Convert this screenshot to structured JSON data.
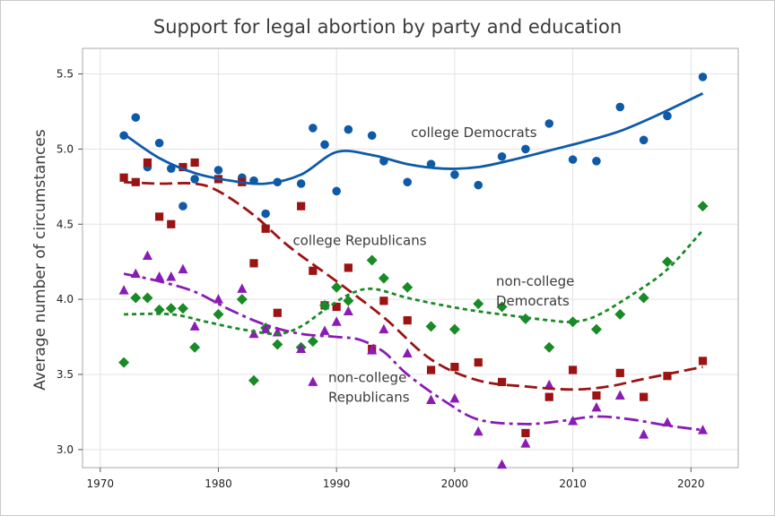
{
  "chart_data": {
    "type": "scatter",
    "title": "Support for legal abortion by party and education",
    "xlabel": "",
    "ylabel": "Average number of circumstances",
    "xlim": [
      1968.5,
      2024
    ],
    "ylim": [
      2.88,
      5.67
    ],
    "xticks": [
      1970,
      1980,
      1990,
      2000,
      2010,
      2020
    ],
    "yticks": [
      3.0,
      3.5,
      4.0,
      4.5,
      5.0,
      5.5
    ],
    "xtick_labels": [
      "1970",
      "1980",
      "1990",
      "2000",
      "2010",
      "2020"
    ],
    "ytick_labels": [
      "3.0",
      "3.5",
      "4.0",
      "4.5",
      "5.0",
      "5.5"
    ],
    "grid": true,
    "legend": "none",
    "series": [
      {
        "name": "college Democrats",
        "color": "#0f5aa8",
        "marker": "circle",
        "line_style": "solid",
        "points": [
          [
            1972,
            5.09
          ],
          [
            1973,
            5.21
          ],
          [
            1974,
            4.88
          ],
          [
            1975,
            5.04
          ],
          [
            1976,
            4.87
          ],
          [
            1977,
            4.62
          ],
          [
            1978,
            4.8
          ],
          [
            1980,
            4.86
          ],
          [
            1982,
            4.81
          ],
          [
            1983,
            4.79
          ],
          [
            1984,
            4.57
          ],
          [
            1985,
            4.78
          ],
          [
            1987,
            4.77
          ],
          [
            1988,
            5.14
          ],
          [
            1989,
            5.03
          ],
          [
            1990,
            4.72
          ],
          [
            1991,
            5.13
          ],
          [
            1993,
            5.09
          ],
          [
            1994,
            4.92
          ],
          [
            1996,
            4.78
          ],
          [
            1998,
            4.9
          ],
          [
            2000,
            4.83
          ],
          [
            2002,
            4.76
          ],
          [
            2004,
            4.95
          ],
          [
            2006,
            5.0
          ],
          [
            2008,
            5.17
          ],
          [
            2010,
            4.93
          ],
          [
            2012,
            4.92
          ],
          [
            2014,
            5.28
          ],
          [
            2016,
            5.06
          ],
          [
            2018,
            5.22
          ],
          [
            2021,
            5.48
          ]
        ],
        "trend": [
          [
            1972,
            5.1
          ],
          [
            1975,
            4.94
          ],
          [
            1978,
            4.84
          ],
          [
            1981,
            4.79
          ],
          [
            1984,
            4.77
          ],
          [
            1987,
            4.83
          ],
          [
            1990,
            4.98
          ],
          [
            1993,
            4.96
          ],
          [
            1996,
            4.9
          ],
          [
            1999,
            4.87
          ],
          [
            2002,
            4.88
          ],
          [
            2005,
            4.93
          ],
          [
            2008,
            4.99
          ],
          [
            2011,
            5.05
          ],
          [
            2014,
            5.12
          ],
          [
            2017,
            5.22
          ],
          [
            2021,
            5.37
          ]
        ]
      },
      {
        "name": "college Republicans",
        "color": "#9b1313",
        "marker": "square",
        "line_style": "dashed",
        "points": [
          [
            1972,
            4.81
          ],
          [
            1973,
            4.78
          ],
          [
            1974,
            4.91
          ],
          [
            1975,
            4.55
          ],
          [
            1976,
            4.5
          ],
          [
            1977,
            4.88
          ],
          [
            1978,
            4.91
          ],
          [
            1980,
            4.8
          ],
          [
            1982,
            4.78
          ],
          [
            1983,
            4.24
          ],
          [
            1984,
            4.47
          ],
          [
            1985,
            3.91
          ],
          [
            1987,
            4.62
          ],
          [
            1988,
            4.19
          ],
          [
            1989,
            3.96
          ],
          [
            1990,
            3.95
          ],
          [
            1991,
            4.21
          ],
          [
            1993,
            3.67
          ],
          [
            1994,
            3.99
          ],
          [
            1996,
            3.86
          ],
          [
            1998,
            3.53
          ],
          [
            2000,
            3.55
          ],
          [
            2002,
            3.58
          ],
          [
            2004,
            3.45
          ],
          [
            2006,
            3.11
          ],
          [
            2008,
            3.35
          ],
          [
            2010,
            3.53
          ],
          [
            2012,
            3.36
          ],
          [
            2014,
            3.51
          ],
          [
            2016,
            3.35
          ],
          [
            2018,
            3.49
          ],
          [
            2021,
            3.59
          ]
        ],
        "trend": [
          [
            1972,
            4.78
          ],
          [
            1975,
            4.77
          ],
          [
            1978,
            4.77
          ],
          [
            1980,
            4.72
          ],
          [
            1983,
            4.56
          ],
          [
            1986,
            4.35
          ],
          [
            1990,
            4.12
          ],
          [
            1994,
            3.88
          ],
          [
            1998,
            3.6
          ],
          [
            2002,
            3.46
          ],
          [
            2006,
            3.42
          ],
          [
            2010,
            3.4
          ],
          [
            2013,
            3.42
          ],
          [
            2016,
            3.47
          ],
          [
            2021,
            3.55
          ]
        ]
      },
      {
        "name": "non-college Democrats",
        "color": "#188a26",
        "marker": "diamond",
        "line_style": "dotted",
        "points": [
          [
            1972,
            3.58
          ],
          [
            1973,
            4.01
          ],
          [
            1974,
            4.01
          ],
          [
            1975,
            3.93
          ],
          [
            1976,
            3.94
          ],
          [
            1977,
            3.94
          ],
          [
            1978,
            3.68
          ],
          [
            1980,
            3.9
          ],
          [
            1982,
            4.0
          ],
          [
            1983,
            3.46
          ],
          [
            1984,
            3.81
          ],
          [
            1985,
            3.7
          ],
          [
            1987,
            3.68
          ],
          [
            1988,
            3.72
          ],
          [
            1989,
            3.96
          ],
          [
            1990,
            4.08
          ],
          [
            1991,
            3.99
          ],
          [
            1993,
            4.26
          ],
          [
            1994,
            4.14
          ],
          [
            1996,
            4.08
          ],
          [
            1998,
            3.82
          ],
          [
            2000,
            3.8
          ],
          [
            2002,
            3.97
          ],
          [
            2004,
            3.95
          ],
          [
            2006,
            3.87
          ],
          [
            2008,
            3.68
          ],
          [
            2010,
            3.85
          ],
          [
            2012,
            3.8
          ],
          [
            2014,
            3.9
          ],
          [
            2016,
            4.01
          ],
          [
            2018,
            4.25
          ],
          [
            2021,
            4.62
          ]
        ],
        "trend": [
          [
            1972,
            3.9
          ],
          [
            1976,
            3.9
          ],
          [
            1979,
            3.85
          ],
          [
            1982,
            3.8
          ],
          [
            1985,
            3.77
          ],
          [
            1987,
            3.82
          ],
          [
            1989,
            3.93
          ],
          [
            1991,
            4.03
          ],
          [
            1993,
            4.07
          ],
          [
            1996,
            4.01
          ],
          [
            1999,
            3.96
          ],
          [
            2002,
            3.92
          ],
          [
            2005,
            3.89
          ],
          [
            2008,
            3.86
          ],
          [
            2010,
            3.85
          ],
          [
            2012,
            3.89
          ],
          [
            2015,
            4.03
          ],
          [
            2018,
            4.2
          ],
          [
            2021,
            4.46
          ]
        ]
      },
      {
        "name": "non-college Republicans",
        "color": "#8a1bb5",
        "marker": "triangle",
        "line_style": "dashdot",
        "points": [
          [
            1972,
            4.06
          ],
          [
            1973,
            4.17
          ],
          [
            1974,
            4.29
          ],
          [
            1975,
            4.15
          ],
          [
            1976,
            4.15
          ],
          [
            1977,
            4.2
          ],
          [
            1978,
            3.82
          ],
          [
            1980,
            4.0
          ],
          [
            1982,
            4.07
          ],
          [
            1983,
            3.77
          ],
          [
            1984,
            3.8
          ],
          [
            1985,
            3.78
          ],
          [
            1987,
            3.67
          ],
          [
            1988,
            3.45
          ],
          [
            1989,
            3.79
          ],
          [
            1990,
            3.85
          ],
          [
            1991,
            3.92
          ],
          [
            1993,
            3.66
          ],
          [
            1994,
            3.8
          ],
          [
            1996,
            3.64
          ],
          [
            1998,
            3.33
          ],
          [
            2000,
            3.34
          ],
          [
            2002,
            3.12
          ],
          [
            2004,
            2.9
          ],
          [
            2006,
            3.04
          ],
          [
            2008,
            3.43
          ],
          [
            2010,
            3.19
          ],
          [
            2012,
            3.28
          ],
          [
            2014,
            3.36
          ],
          [
            2016,
            3.1
          ],
          [
            2018,
            3.18
          ],
          [
            2021,
            3.13
          ]
        ],
        "trend": [
          [
            1972,
            4.17
          ],
          [
            1975,
            4.12
          ],
          [
            1978,
            4.05
          ],
          [
            1981,
            3.93
          ],
          [
            1984,
            3.83
          ],
          [
            1987,
            3.77
          ],
          [
            1990,
            3.75
          ],
          [
            1992,
            3.73
          ],
          [
            1994,
            3.65
          ],
          [
            1996,
            3.5
          ],
          [
            1999,
            3.33
          ],
          [
            2002,
            3.2
          ],
          [
            2006,
            3.17
          ],
          [
            2009,
            3.19
          ],
          [
            2012,
            3.22
          ],
          [
            2015,
            3.2
          ],
          [
            2018,
            3.16
          ],
          [
            2021,
            3.13
          ]
        ]
      }
    ],
    "annotations": [
      {
        "lines": [
          "college Democrats"
        ],
        "x": 1996.3,
        "y": 5.08
      },
      {
        "lines": [
          "college Republicans"
        ],
        "x": 1986.3,
        "y": 4.36
      },
      {
        "lines": [
          "non-college",
          "Democrats"
        ],
        "x": 2003.5,
        "y": 4.09
      },
      {
        "lines": [
          "non-college",
          "Republicans"
        ],
        "x": 1989.3,
        "y": 3.45
      }
    ]
  }
}
